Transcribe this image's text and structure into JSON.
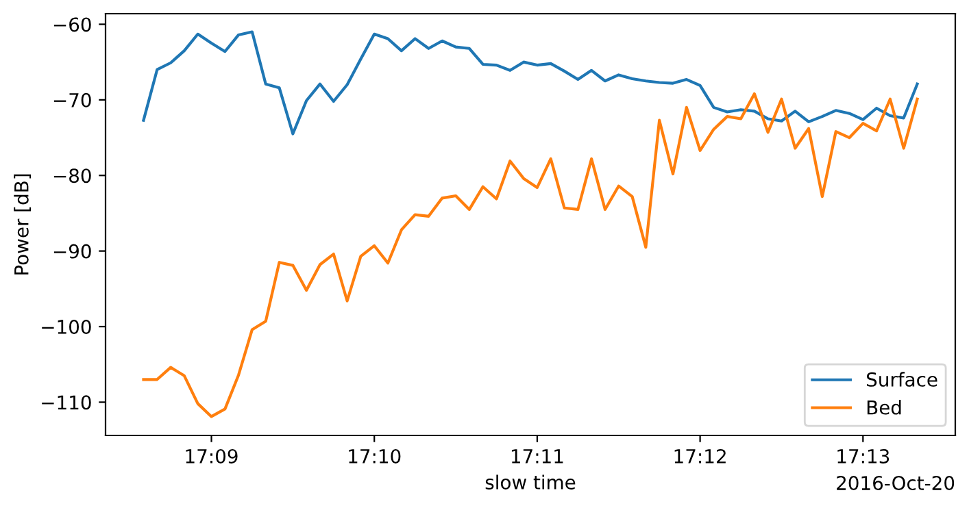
{
  "chart_data": {
    "type": "line",
    "xlabel": "slow time",
    "ylabel": "Power [dB]",
    "x": [
      "2016-10-20T17:08:35",
      "2016-10-20T17:08:40",
      "2016-10-20T17:08:45",
      "2016-10-20T17:08:50",
      "2016-10-20T17:08:55",
      "2016-10-20T17:09:00",
      "2016-10-20T17:09:05",
      "2016-10-20T17:09:10",
      "2016-10-20T17:09:15",
      "2016-10-20T17:09:20",
      "2016-10-20T17:09:25",
      "2016-10-20T17:09:30",
      "2016-10-20T17:09:35",
      "2016-10-20T17:09:40",
      "2016-10-20T17:09:45",
      "2016-10-20T17:09:50",
      "2016-10-20T17:09:55",
      "2016-10-20T17:10:00",
      "2016-10-20T17:10:05",
      "2016-10-20T17:10:10",
      "2016-10-20T17:10:15",
      "2016-10-20T17:10:20",
      "2016-10-20T17:10:25",
      "2016-10-20T17:10:30",
      "2016-10-20T17:10:35",
      "2016-10-20T17:10:40",
      "2016-10-20T17:10:45",
      "2016-10-20T17:10:50",
      "2016-10-20T17:10:55",
      "2016-10-20T17:11:00",
      "2016-10-20T17:11:05",
      "2016-10-20T17:11:10",
      "2016-10-20T17:11:15",
      "2016-10-20T17:11:20",
      "2016-10-20T17:11:25",
      "2016-10-20T17:11:30",
      "2016-10-20T17:11:35",
      "2016-10-20T17:11:40",
      "2016-10-20T17:11:45",
      "2016-10-20T17:11:50",
      "2016-10-20T17:11:55",
      "2016-10-20T17:12:00",
      "2016-10-20T17:12:05",
      "2016-10-20T17:12:10",
      "2016-10-20T17:12:15",
      "2016-10-20T17:12:20",
      "2016-10-20T17:12:25",
      "2016-10-20T17:12:30",
      "2016-10-20T17:12:35",
      "2016-10-20T17:12:40",
      "2016-10-20T17:12:45",
      "2016-10-20T17:12:50",
      "2016-10-20T17:12:55",
      "2016-10-20T17:13:00",
      "2016-10-20T17:13:05",
      "2016-10-20T17:13:10",
      "2016-10-20T17:13:15",
      "2016-10-20T17:13:20"
    ],
    "series": [
      {
        "name": "Surface",
        "color": "#1f77b4",
        "values": [
          -72.7,
          -66.0,
          -65.1,
          -63.5,
          -61.3,
          -62.5,
          -63.6,
          -61.4,
          -61.0,
          -67.9,
          -68.4,
          -74.5,
          -70.1,
          -67.9,
          -70.2,
          -68.0,
          -64.6,
          -61.3,
          -61.9,
          -63.5,
          -61.9,
          -63.2,
          -62.2,
          -63.0,
          -63.2,
          -65.3,
          -65.4,
          -66.1,
          -65.0,
          -65.4,
          -65.2,
          -66.2,
          -67.3,
          -66.1,
          -67.5,
          -66.7,
          -67.2,
          -67.5,
          -67.7,
          -67.8,
          -67.3,
          -68.1,
          -71.0,
          -71.6,
          -71.3,
          -71.5,
          -72.5,
          -72.8,
          -71.5,
          -72.9,
          -72.2,
          -71.4,
          -71.8,
          -72.6,
          -71.1,
          -72.1,
          -72.4,
          -67.9
        ]
      },
      {
        "name": "Bed",
        "color": "#ff7f0e",
        "values": [
          -107.0,
          -107.0,
          -105.4,
          -106.5,
          -110.2,
          -111.9,
          -110.9,
          -106.4,
          -100.4,
          -99.3,
          -91.5,
          -91.9,
          -95.2,
          -91.8,
          -90.4,
          -96.6,
          -90.7,
          -89.3,
          -91.6,
          -87.2,
          -85.2,
          -85.4,
          -83.0,
          -82.7,
          -84.5,
          -81.5,
          -83.1,
          -78.1,
          -80.4,
          -81.6,
          -77.8,
          -84.3,
          -84.5,
          -77.8,
          -84.5,
          -81.4,
          -82.8,
          -89.5,
          -72.7,
          -79.8,
          -71.0,
          -76.7,
          -73.9,
          -72.2,
          -72.5,
          -69.2,
          -74.3,
          -69.9,
          -76.4,
          -73.8,
          -82.8,
          -74.2,
          -75.0,
          -73.1,
          -74.1,
          -69.9,
          -76.4,
          -69.9
        ]
      }
    ],
    "xlim": [
      "2016-10-20T17:08:21",
      "2016-10-20T17:13:34"
    ],
    "xticks": [
      {
        "value": "2016-10-20T17:09",
        "label": "17:09"
      },
      {
        "value": "2016-10-20T17:10",
        "label": "17:10"
      },
      {
        "value": "2016-10-20T17:11",
        "label": "17:11"
      },
      {
        "value": "2016-10-20T17:12",
        "label": "17:12"
      },
      {
        "value": "2016-10-20T17:13",
        "label": "17:13"
      }
    ],
    "ylim": [
      -114.4,
      -58.6
    ],
    "yticks": [
      -110,
      -100,
      -90,
      -80,
      -70,
      -60
    ],
    "annotations": [
      "2016-Oct-20"
    ],
    "legend": "bottom right",
    "line_style": "solid",
    "marker": "none"
  }
}
